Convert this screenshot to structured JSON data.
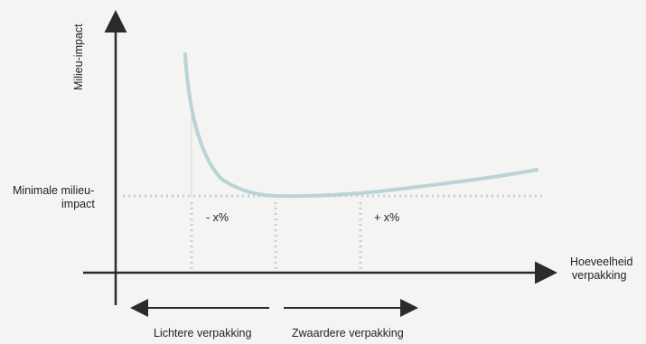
{
  "diagram": {
    "y_axis_label": "Milieu-impact",
    "x_axis_label_line1": "Hoeveelheid",
    "x_axis_label_line2": "verpakking",
    "min_label_line1": "Minimale milieu-",
    "min_label_line2": "impact",
    "left_marker_label": "- x%",
    "right_marker_label": "+ x%",
    "lighter_label": "Lichtere verpakking",
    "heavier_label": "Zwaardere verpakking"
  },
  "colors": {
    "axis": "#2b2b2b",
    "curve": "#b9d3d8",
    "dotted": "#b9d3d8",
    "background": "#f4f4f2"
  }
}
